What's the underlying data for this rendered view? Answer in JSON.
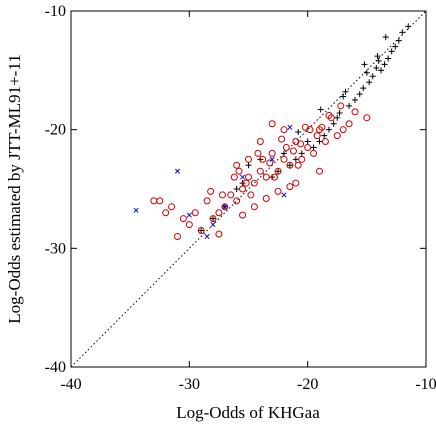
{
  "chart_data": {
    "type": "scatter",
    "title": "",
    "xlabel": "Log-Odds of KHGaa",
    "ylabel": "Log-Odds estimated by JTT-ML91+-11",
    "xlim": [
      -40,
      -10
    ],
    "ylim": [
      -40,
      -10
    ],
    "xticks": [
      "-40",
      "-30",
      "-20",
      "-10"
    ],
    "yticks": [
      "-40",
      "-30",
      "-20",
      "-10"
    ],
    "grid": false,
    "legend": "none",
    "reference_line": {
      "x": [
        -40,
        -10
      ],
      "y": [
        -40,
        -10
      ],
      "style": "dotted",
      "color": "#000000"
    },
    "series": [
      {
        "marker": "plus",
        "color": "#000000",
        "x": [
          -11.5,
          -12.0,
          -12.3,
          -12.6,
          -12.9,
          -13.2,
          -13.5,
          -13.8,
          -14.0,
          -14.2,
          -14.5,
          -14.8,
          -15.0,
          -15.3,
          -15.6,
          -16.0,
          -16.5,
          -17.0,
          -17.3,
          -17.5,
          -17.8,
          -18.2,
          -18.6,
          -19.0,
          -19.5,
          -20.0,
          -20.5,
          -21.0,
          -21.5,
          -22.0,
          -22.5,
          -23.0,
          -24.0,
          -25.0,
          -25.5,
          -26.0,
          -27.0,
          -28.0,
          -29.0,
          -13.4,
          -14.1,
          -15.2,
          -16.8,
          -18.9,
          -20.8
        ],
        "y": [
          -11.3,
          -11.8,
          -12.5,
          -13.0,
          -13.4,
          -14.0,
          -14.5,
          -15.0,
          -14.2,
          -14.8,
          -15.5,
          -16.0,
          -15.2,
          -16.5,
          -17.0,
          -17.5,
          -18.0,
          -17.2,
          -18.6,
          -19.0,
          -19.5,
          -20.0,
          -20.5,
          -21.0,
          -21.5,
          -21.0,
          -22.0,
          -22.5,
          -23.0,
          -22.0,
          -23.5,
          -24.0,
          -22.5,
          -23.0,
          -24.5,
          -25.0,
          -26.5,
          -27.5,
          -28.5,
          -12.2,
          -13.8,
          -14.5,
          -16.8,
          -18.3,
          -20.2
        ]
      },
      {
        "marker": "circle",
        "color": "#d00000",
        "x": [
          -15.0,
          -16.0,
          -16.5,
          -17.0,
          -17.5,
          -18.0,
          -18.5,
          -19.0,
          -19.5,
          -20.0,
          -20.5,
          -21.0,
          -21.5,
          -22.0,
          -22.5,
          -23.0,
          -23.5,
          -24.0,
          -24.5,
          -25.0,
          -25.5,
          -26.0,
          -26.5,
          -27.0,
          -27.5,
          -28.0,
          -28.5,
          -29.0,
          -29.5,
          -30.0,
          -30.5,
          -31.0,
          -31.5,
          -32.0,
          -32.5,
          -33.0,
          -18.2,
          -19.2,
          -20.2,
          -21.2,
          -22.2,
          -23.2,
          -24.2,
          -25.2,
          -26.2,
          -27.2,
          -19.8,
          -20.8,
          -21.8,
          -22.8,
          -23.8,
          -24.8,
          -25.8,
          -21.5,
          -22.5,
          -23.5,
          -24.5,
          -25.5,
          -17.2,
          -18.8,
          -20.6,
          -22.0,
          -24.0,
          -26.0,
          -28.2,
          -23.0,
          -21.0,
          -19.0,
          -25.0,
          -27.5
        ],
        "y": [
          -19.0,
          -18.5,
          -19.5,
          -20.0,
          -20.5,
          -19.0,
          -21.0,
          -20.0,
          -22.0,
          -21.5,
          -22.5,
          -21.0,
          -23.0,
          -22.5,
          -23.5,
          -22.0,
          -24.0,
          -23.5,
          -24.5,
          -24.0,
          -25.0,
          -26.0,
          -25.5,
          -26.5,
          -27.0,
          -27.5,
          -26.0,
          -28.5,
          -27.0,
          -28.0,
          -27.5,
          -29.0,
          -26.5,
          -27.0,
          -26.0,
          -26.0,
          -18.8,
          -20.5,
          -19.8,
          -21.8,
          -20.8,
          -22.8,
          -22.0,
          -24.5,
          -24.0,
          -25.5,
          -20.0,
          -23.0,
          -21.5,
          -24.0,
          -22.5,
          -25.5,
          -23.5,
          -24.8,
          -25.2,
          -25.8,
          -26.5,
          -27.2,
          -18.0,
          -19.8,
          -21.2,
          -20.0,
          -21.0,
          -23.0,
          -25.2,
          -19.5,
          -24.5,
          -23.5,
          -22.5,
          -28.8
        ]
      },
      {
        "marker": "x",
        "color": "#1010d0",
        "x": [
          -34.5,
          -31.0,
          -30.0,
          -28.5,
          -28.0,
          -27.0,
          -25.5,
          -23.0,
          -21.5,
          -22.0
        ],
        "y": [
          -26.8,
          -23.5,
          -27.2,
          -29.0,
          -28.0,
          -26.5,
          -24.0,
          -22.5,
          -19.8,
          -25.5
        ]
      }
    ]
  }
}
